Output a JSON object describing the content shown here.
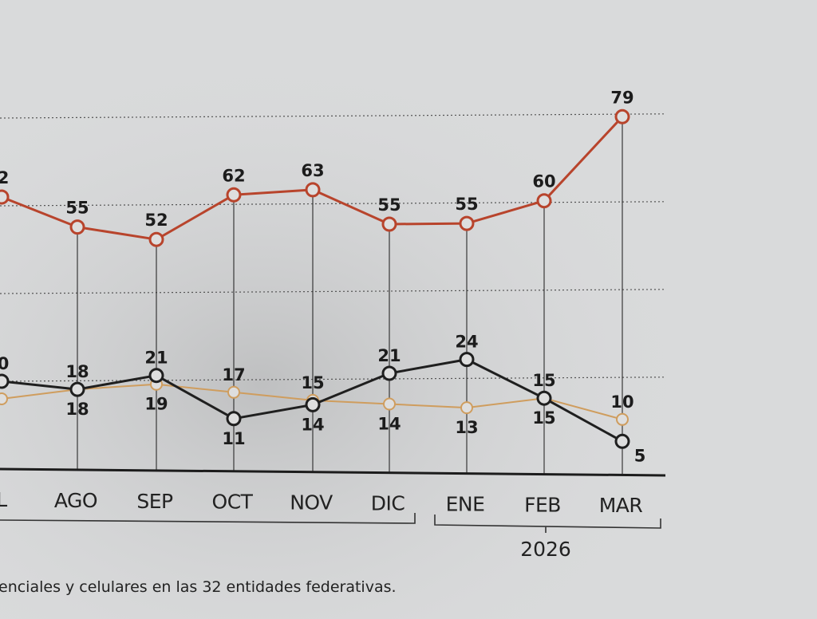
{
  "chart_data": {
    "type": "line",
    "categories": [
      "JUL",
      "AGO",
      "SEP",
      "OCT",
      "NOV",
      "DIC",
      "ENE",
      "FEB",
      "MAR"
    ],
    "tick_labels": [
      "L",
      "AGO",
      "SEP",
      "OCT",
      "NOV",
      "DIC",
      "ENE",
      "FEB",
      "MAR"
    ],
    "year_label": "2026",
    "series": [
      {
        "name": "red",
        "color": "#b8442c",
        "values": [
          62,
          55,
          52,
          62,
          63,
          55,
          55,
          60,
          79
        ],
        "labels": [
          "2",
          "55",
          "52",
          "62",
          "63",
          "55",
          "55",
          "60",
          "79"
        ]
      },
      {
        "name": "black",
        "color": "#1f1f1f",
        "values": [
          20,
          18,
          21,
          11,
          14,
          21,
          24,
          15,
          5
        ],
        "labels": [
          "0",
          "18",
          "21",
          "11",
          "14",
          "21",
          "24",
          "15",
          "5"
        ]
      },
      {
        "name": "orange",
        "color": "#cf9d5e",
        "values": [
          16,
          18,
          19,
          17,
          15,
          14,
          13,
          15,
          10
        ],
        "labels": [
          "",
          "18",
          "19",
          "17",
          "15",
          "14",
          "13",
          "15",
          "10"
        ]
      }
    ],
    "footnote": "enciales y celulares en las 32 entidades federativas."
  }
}
